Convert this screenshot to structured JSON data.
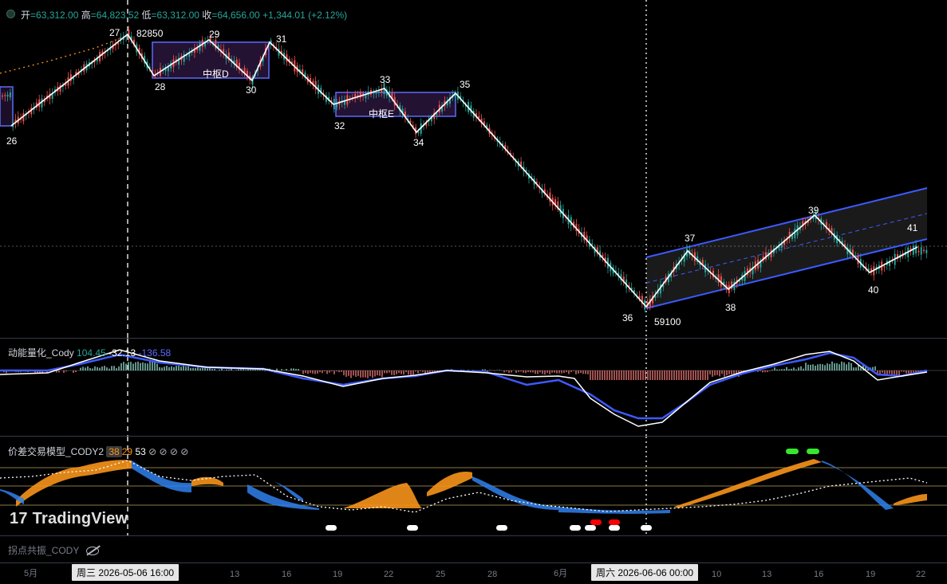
{
  "ohlc": {
    "open_label": "开",
    "open": "=63,312.00",
    "high_label": "高",
    "high": "=64,823.52",
    "low_label": "低",
    "low": "=63,312.00",
    "close_label": "收",
    "close": "=64,656.00",
    "change": "+1,344.01 (+2.12%)"
  },
  "price_labels": {
    "high_mark": "82850",
    "low_mark": "59100",
    "zhongshu_d": "中枢D",
    "zhongshu_e": "中枢E"
  },
  "momentum": {
    "name": "动能量化_Cody",
    "v1": "104.45",
    "v2": "-32.13",
    "v3": "-136.58"
  },
  "diff_model": {
    "name": "价差交易模型_CODY2",
    "v1": "38",
    "v2": "29",
    "v3": "53",
    "icons": "⊘ ⊘ ⊘ ⊘"
  },
  "pivot_pane": {
    "name": "拐点共振_CODY"
  },
  "watermark": "TradingView",
  "time_axis": {
    "ticks": [
      "5月",
      "13",
      "16",
      "19",
      "22",
      "25",
      "28",
      "6月",
      "10",
      "13",
      "16",
      "19",
      "22"
    ],
    "crosshair_left": "周三 2026-05-06   16:00",
    "crosshair_right": "周六 2026-06-06   00:00"
  },
  "colors": {
    "up": "#26a69a",
    "down": "#ef5350",
    "zigzag": "#ffffff",
    "channel": "#3d5afe",
    "orange": "#f7931a",
    "blue_area": "#2f80ed"
  },
  "chart_data": {
    "type": "line",
    "description_source": "zigzag pivot points (stroke endpoints) read from the candlestick chart",
    "pivots": [
      {
        "label": "26",
        "kind": "low"
      },
      {
        "label": "27",
        "kind": "high",
        "value": 82850
      },
      {
        "label": "28",
        "kind": "low"
      },
      {
        "label": "29",
        "kind": "high"
      },
      {
        "label": "30",
        "kind": "low"
      },
      {
        "label": "31",
        "kind": "high"
      },
      {
        "label": "32",
        "kind": "low"
      },
      {
        "label": "33",
        "kind": "high"
      },
      {
        "label": "34",
        "kind": "low"
      },
      {
        "label": "35",
        "kind": "high"
      },
      {
        "label": "36",
        "kind": "low",
        "value": 59100
      },
      {
        "label": "37",
        "kind": "high"
      },
      {
        "label": "38",
        "kind": "low"
      },
      {
        "label": "39",
        "kind": "high"
      },
      {
        "label": "40",
        "kind": "low"
      },
      {
        "label": "41",
        "kind": "high"
      }
    ]
  }
}
